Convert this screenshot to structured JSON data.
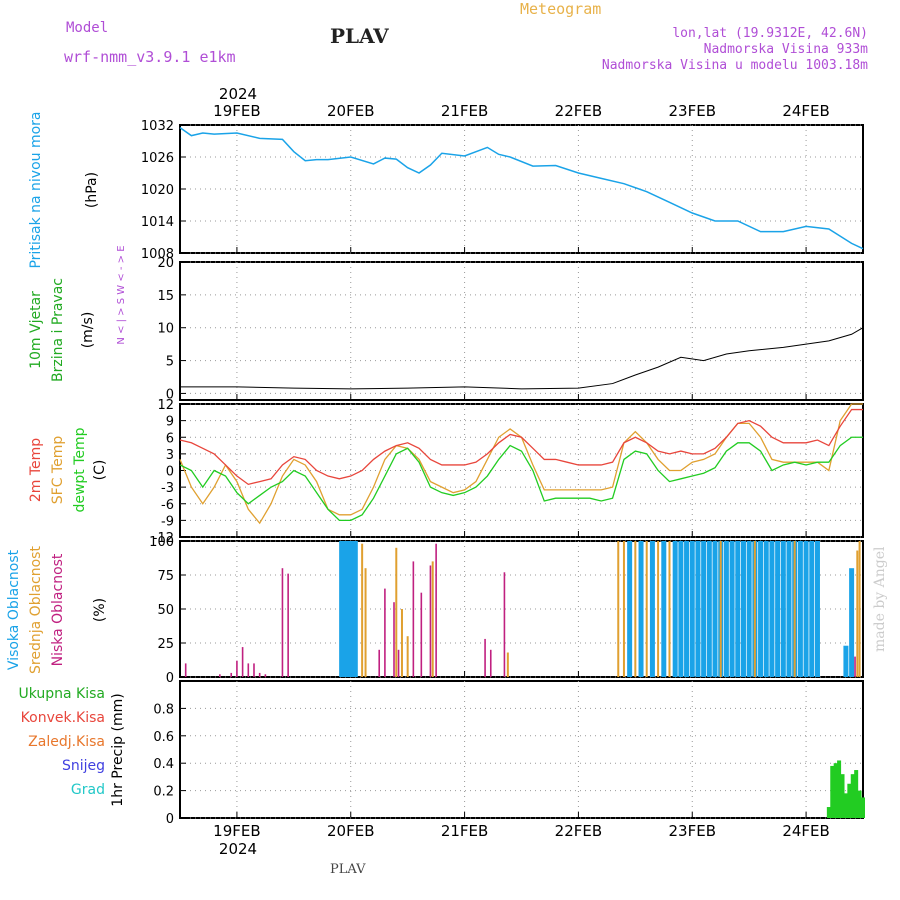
{
  "header": {
    "model_label": "Model",
    "model_name": "wrf-nmm_v3.9.1  e1km",
    "station": "PLAV",
    "title": "Meteogram",
    "location": "lon,lat (19.9312E, 42.6N)",
    "elevation": "Nadmorska Visina 933m",
    "model_elevation": "Nadmorska Visina u modelu 1003.18m"
  },
  "footer": {
    "station": "PLAV",
    "credit": "made by Angel"
  },
  "colors": {
    "pressure": "#1aa3e8",
    "temp2m": "#e8463c",
    "sfc": "#e0a030",
    "dewpt": "#22cc22",
    "high_cloud": "#1aa3e8",
    "mid_cloud": "#e0a030",
    "low_cloud": "#c02080",
    "precip_total": "#22cc22",
    "label_purple": "#b04ed6"
  },
  "chart_data": [
    {
      "type": "line",
      "name": "pressure",
      "ylabel_main": "Pritisak na nivou mora",
      "unit": "(hPa)",
      "ylim": [
        1008,
        1032
      ],
      "yticks": [
        "1032",
        "1026",
        "1020",
        "1014",
        "1008"
      ],
      "x": [
        18.5,
        18.6,
        18.7,
        18.8,
        19.0,
        19.2,
        19.4,
        19.5,
        19.6,
        19.7,
        19.8,
        20.0,
        20.2,
        20.3,
        20.4,
        20.5,
        20.6,
        20.7,
        20.8,
        21.0,
        21.2,
        21.3,
        21.4,
        21.6,
        21.8,
        22.0,
        22.2,
        22.4,
        22.6,
        22.8,
        23.0,
        23.2,
        23.4,
        23.6,
        23.8,
        24.0,
        24.2,
        24.4,
        24.5
      ],
      "y": [
        1031.5,
        1030,
        1030.5,
        1030.3,
        1030.5,
        1029.5,
        1029.3,
        1027,
        1025.3,
        1025.5,
        1025.5,
        1026,
        1024.7,
        1025.8,
        1025.6,
        1024,
        1023,
        1024.5,
        1026.7,
        1026.2,
        1027.8,
        1026.5,
        1026,
        1024.3,
        1024.4,
        1023,
        1022,
        1021,
        1019.5,
        1017.5,
        1015.5,
        1014,
        1014,
        1012,
        1012,
        1013,
        1012.5,
        1009.8,
        1008.8
      ]
    },
    {
      "type": "scatter",
      "name": "wind",
      "ylabel_main": "10m Vjetar",
      "ylabel_sub": "Brzina i Pravac",
      "unit": "(m/s)",
      "compass": "N < | > S  W < - > E",
      "ylim": [
        -1,
        20
      ],
      "yticks": [
        "20",
        "15",
        "10",
        "5",
        "0"
      ],
      "speed_x": [
        18.5,
        19.0,
        19.5,
        20.0,
        20.5,
        21.0,
        21.5,
        22.0,
        22.3,
        22.5,
        22.7,
        22.9,
        23.1,
        23.3,
        23.5,
        23.8,
        24.0,
        24.2,
        24.4,
        24.5
      ],
      "speed_y": [
        1,
        1,
        0.8,
        0.7,
        0.8,
        1,
        0.7,
        0.8,
        1.5,
        2.8,
        4,
        5.5,
        5,
        6,
        6.5,
        7,
        7.5,
        8,
        9,
        10
      ]
    },
    {
      "type": "line",
      "name": "temperature",
      "ylabel_a": "2m Temp",
      "ylabel_b": "SFC Temp",
      "ylabel_c": "dewpt Temp",
      "unit": "(C)",
      "ylim": [
        -12,
        12
      ],
      "yticks": [
        "12",
        "9",
        "6",
        "3",
        "0",
        "-3",
        "-6",
        "-9",
        "-12"
      ],
      "x": [
        18.5,
        18.6,
        18.7,
        18.8,
        18.9,
        19.0,
        19.1,
        19.2,
        19.3,
        19.4,
        19.5,
        19.6,
        19.7,
        19.8,
        19.9,
        20.0,
        20.1,
        20.2,
        20.3,
        20.4,
        20.5,
        20.6,
        20.7,
        20.8,
        20.9,
        21.0,
        21.1,
        21.2,
        21.3,
        21.4,
        21.5,
        21.6,
        21.7,
        21.8,
        21.9,
        22.0,
        22.1,
        22.2,
        22.3,
        22.4,
        22.5,
        22.6,
        22.7,
        22.8,
        22.9,
        23.0,
        23.1,
        23.2,
        23.3,
        23.4,
        23.5,
        23.6,
        23.7,
        23.8,
        23.9,
        24.0,
        24.1,
        24.2,
        24.3,
        24.4,
        24.5
      ],
      "t2m": [
        5.5,
        5,
        4,
        3,
        1,
        -1,
        -2.5,
        -2,
        -1.5,
        1,
        2.5,
        2,
        0,
        -1,
        -1.5,
        -1,
        0,
        2,
        3.5,
        4.5,
        5,
        4,
        2,
        1,
        1,
        1,
        1.5,
        3,
        5,
        6.5,
        6,
        4,
        2,
        2,
        1.5,
        1,
        1,
        1,
        1.5,
        5,
        6,
        5,
        3.5,
        3,
        3.5,
        3,
        3,
        4,
        6,
        8.5,
        9,
        8,
        6,
        5,
        5,
        5,
        5.5,
        4.5,
        8,
        11,
        11
      ],
      "sfc": [
        2,
        -3,
        -6,
        -3,
        1,
        -2,
        -7,
        -9.5,
        -6,
        -1,
        2,
        1,
        -2,
        -7,
        -8,
        -8,
        -7,
        -3,
        2,
        4.5,
        4,
        2,
        -2,
        -3,
        -4,
        -3.5,
        -2,
        2,
        6,
        7.5,
        6,
        1,
        -3.5,
        -3.5,
        -3.5,
        -3.5,
        -3.5,
        -3.5,
        -3,
        5,
        7,
        5,
        2,
        0,
        0,
        1.5,
        2,
        3,
        6,
        8.5,
        8.5,
        6,
        2,
        1.5,
        1.5,
        1.5,
        1.5,
        0,
        9,
        12,
        12
      ],
      "dewpt": [
        1,
        0,
        -3,
        0,
        -1,
        -4,
        -6,
        -4.5,
        -3,
        -2,
        0,
        -1,
        -4,
        -7,
        -9,
        -9,
        -8,
        -5,
        -1,
        3,
        4,
        1.5,
        -3,
        -4,
        -4.5,
        -4,
        -3,
        -1,
        2,
        4.5,
        3.5,
        0,
        -5.5,
        -5,
        -5,
        -5,
        -5,
        -5.5,
        -5,
        2,
        3.5,
        3,
        0,
        -2,
        -1.5,
        -1,
        -0.5,
        0.5,
        3.5,
        5,
        5,
        3.5,
        0,
        1,
        1.5,
        1,
        1.5,
        1.5,
        4.5,
        6,
        6
      ]
    },
    {
      "type": "bar",
      "name": "cloud",
      "ylabel_a": "Visoka Oblacnost",
      "ylabel_b": "Srednja Oblacnost",
      "ylabel_c": "Niska Oblacnost",
      "unit": "(%)",
      "ylim": [
        0,
        100
      ],
      "yticks": [
        "100",
        "75",
        "50",
        "25",
        "0"
      ],
      "high_x": [
        19.92,
        19.96,
        20.0,
        20.04,
        22.45,
        22.55,
        22.65,
        22.75,
        22.85,
        22.9,
        22.95,
        23.0,
        23.05,
        23.1,
        23.15,
        23.2,
        23.25,
        23.3,
        23.35,
        23.4,
        23.45,
        23.5,
        23.55,
        23.6,
        23.65,
        23.7,
        23.75,
        23.8,
        23.85,
        23.9,
        23.95,
        24.0,
        24.05,
        24.1,
        24.35,
        24.4
      ],
      "high_y": [
        100,
        100,
        100,
        100,
        100,
        100,
        100,
        100,
        100,
        100,
        100,
        100,
        100,
        100,
        100,
        100,
        100,
        100,
        100,
        100,
        100,
        100,
        100,
        100,
        100,
        100,
        100,
        100,
        100,
        100,
        100,
        100,
        100,
        100,
        23,
        80
      ],
      "mid_x": [
        20.1,
        20.13,
        20.4,
        20.45,
        20.5,
        20.72,
        21.38,
        22.35,
        22.4,
        22.5,
        22.6,
        22.7,
        22.8,
        23.25,
        23.55,
        23.9,
        24.45,
        24.47
      ],
      "mid_y": [
        98,
        80,
        95,
        50,
        30,
        85,
        18,
        100,
        100,
        100,
        100,
        100,
        100,
        100,
        100,
        100,
        93,
        100
      ],
      "low_x": [
        18.55,
        18.85,
        18.95,
        19.0,
        19.05,
        19.1,
        19.15,
        19.2,
        19.25,
        19.4,
        19.45,
        20.25,
        20.3,
        20.38,
        20.42,
        20.55,
        20.62,
        20.7,
        20.75,
        21.18,
        21.23,
        21.35,
        24.43
      ],
      "low_y": [
        10,
        2,
        3,
        12,
        22,
        10,
        10,
        3,
        2,
        80,
        76,
        20,
        65,
        55,
        20,
        85,
        62,
        82,
        98,
        28,
        20,
        77,
        15
      ]
    },
    {
      "type": "bar",
      "name": "precip",
      "ylabel_main": "1hr Precip (mm)",
      "legend": [
        "Ukupna Kisa",
        "Konvek.Kisa",
        "Zaledj.Kisa",
        "Snijeg",
        "Grad"
      ],
      "ylim": [
        0,
        1.0
      ],
      "yticks": [
        "0.8",
        "0.6",
        "0.4",
        "0.2",
        "0"
      ],
      "x": [
        24.2,
        24.23,
        24.26,
        24.29,
        24.32,
        24.35,
        24.38,
        24.41,
        24.44,
        24.47,
        24.5
      ],
      "values": [
        0.08,
        0.38,
        0.4,
        0.42,
        0.32,
        0.18,
        0.25,
        0.32,
        0.35,
        0.2,
        0.15
      ]
    }
  ],
  "axis": {
    "year": "2024",
    "days": [
      "19FEB",
      "20FEB",
      "21FEB",
      "22FEB",
      "23FEB",
      "24FEB"
    ],
    "day_x": [
      19,
      20,
      21,
      22,
      23,
      24
    ],
    "xlim": [
      18.5,
      24.5
    ]
  }
}
